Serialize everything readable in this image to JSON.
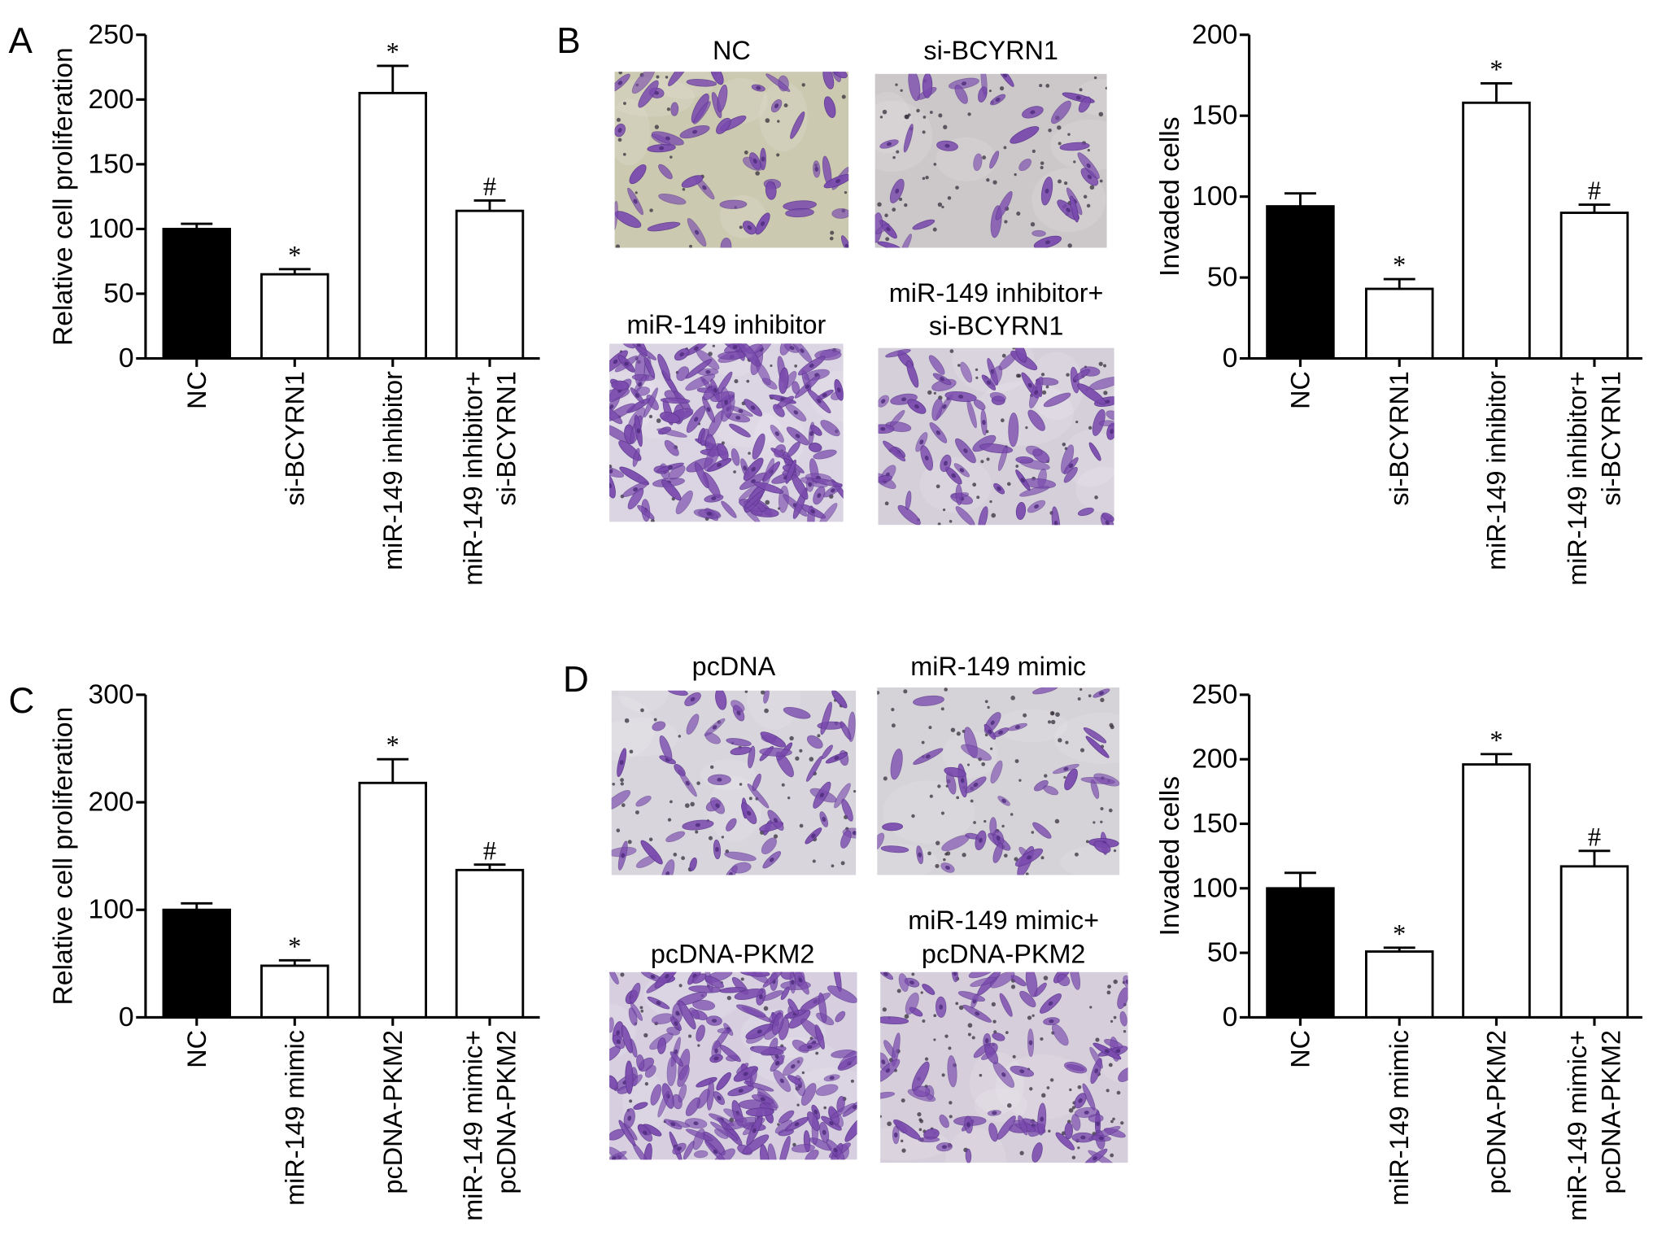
{
  "panels": [
    {
      "label": "A"
    },
    {
      "label": "B"
    },
    {
      "label": "C"
    },
    {
      "label": "D"
    }
  ],
  "stain_color": "#7a4aae",
  "micrographs": {
    "B": [
      {
        "caption": [
          "NC"
        ],
        "background": "#cbc9b0"
      },
      {
        "caption": [
          "si-BCYRN1"
        ],
        "background": "#ccc7c9"
      },
      {
        "caption": [
          "miR-149 inhibitor"
        ],
        "background": "#dbd4e2"
      },
      {
        "caption": [
          "miR-149 inhibitor+",
          "si-BCYRN1"
        ],
        "background": "#d5cfda"
      }
    ],
    "D": [
      {
        "caption": [
          "pcDNA"
        ],
        "background": "#d8d5dc"
      },
      {
        "caption": [
          "miR-149 mimic"
        ],
        "background": "#d5d2d8"
      },
      {
        "caption": [
          "pcDNA-PKM2"
        ],
        "background": "#d7cfe0"
      },
      {
        "caption": [
          "miR-149 mimic+",
          "pcDNA-PKM2"
        ],
        "background": "#d6cfdb"
      }
    ]
  },
  "chart_data": [
    {
      "type": "bar",
      "ylabel": "Relative cell proliferation",
      "ylim": [
        0,
        250
      ],
      "yticks": [
        0,
        50,
        100,
        150,
        200,
        250
      ],
      "categories": [
        [
          "NC"
        ],
        [
          "si-BCYRN1"
        ],
        [
          "miR-149 inhibitor"
        ],
        [
          "miR-149 inhibitor+",
          "si-BCYRN1"
        ]
      ],
      "values": [
        100,
        65,
        205,
        114
      ],
      "errors": [
        4,
        4,
        21,
        8
      ],
      "annotations": [
        "",
        "*",
        "*",
        "#"
      ],
      "bar_colors": [
        "#000000",
        "#ffffff",
        "#ffffff",
        "#ffffff"
      ],
      "grid": false
    },
    {
      "type": "bar",
      "ylabel": "Invaded cells",
      "ylim": [
        0,
        200
      ],
      "yticks": [
        0,
        50,
        100,
        150,
        200
      ],
      "categories": [
        [
          "NC"
        ],
        [
          "si-BCYRN1"
        ],
        [
          "miR-149 inhibitor"
        ],
        [
          "miR-149 inhibitor+",
          "si-BCYRN1"
        ]
      ],
      "values": [
        94,
        43,
        158,
        90
      ],
      "errors": [
        8,
        6,
        12,
        5
      ],
      "annotations": [
        "",
        "*",
        "*",
        "#"
      ],
      "bar_colors": [
        "#000000",
        "#ffffff",
        "#ffffff",
        "#ffffff"
      ],
      "grid": false
    },
    {
      "type": "bar",
      "ylabel": "Relative cell proliferation",
      "ylim": [
        0,
        300
      ],
      "yticks": [
        0,
        100,
        200,
        300
      ],
      "categories": [
        [
          "NC"
        ],
        [
          "miR-149 mimic"
        ],
        [
          "pcDNA-PKM2"
        ],
        [
          "miR-149 mimic+",
          "pcDNA-PKM2"
        ]
      ],
      "values": [
        100,
        48,
        218,
        137
      ],
      "errors": [
        6,
        5,
        22,
        5
      ],
      "annotations": [
        "",
        "*",
        "*",
        "#"
      ],
      "bar_colors": [
        "#000000",
        "#ffffff",
        "#ffffff",
        "#ffffff"
      ],
      "grid": false
    },
    {
      "type": "bar",
      "ylabel": "Invaded cells",
      "ylim": [
        0,
        250
      ],
      "yticks": [
        0,
        50,
        100,
        150,
        200,
        250
      ],
      "categories": [
        [
          "NC"
        ],
        [
          "miR-149 mimic"
        ],
        [
          "pcDNA-PKM2"
        ],
        [
          "miR-149 mimic+",
          "pcDNA-PKM2"
        ]
      ],
      "values": [
        100,
        51,
        196,
        117
      ],
      "errors": [
        12,
        3,
        8,
        12
      ],
      "annotations": [
        "",
        "*",
        "*",
        "#"
      ],
      "bar_colors": [
        "#000000",
        "#ffffff",
        "#ffffff",
        "#ffffff"
      ],
      "grid": false
    }
  ]
}
